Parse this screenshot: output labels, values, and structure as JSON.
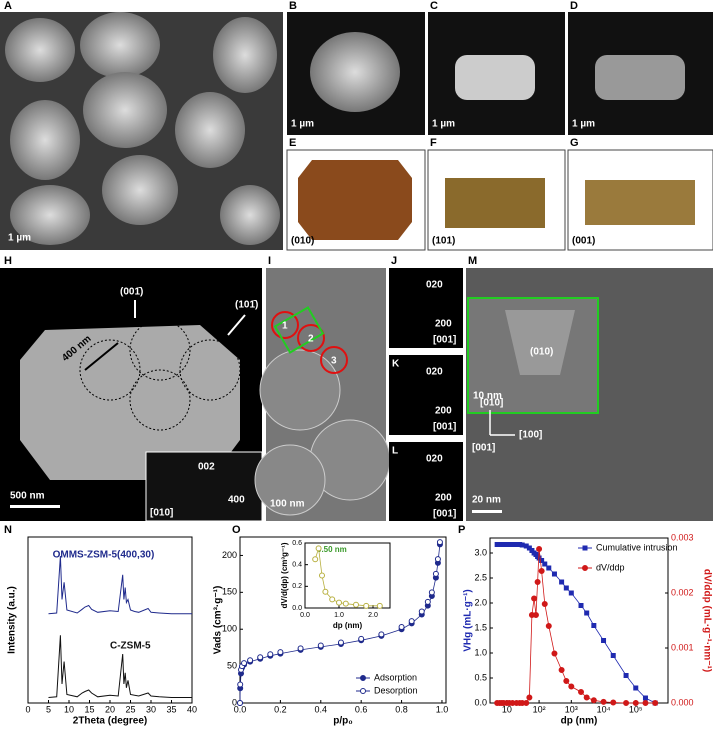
{
  "figure": {
    "panel_letters": [
      "A",
      "B",
      "C",
      "D",
      "E",
      "F",
      "G",
      "H",
      "I",
      "J",
      "K",
      "L",
      "M",
      "N",
      "O",
      "P"
    ],
    "A": {
      "scale_bar": "1 µm"
    },
    "B": {
      "scale_bar": "1 µm"
    },
    "C": {
      "scale_bar": "1 µm"
    },
    "D": {
      "scale_bar": "1 µm"
    },
    "E": {
      "plane": "(010)"
    },
    "F": {
      "plane": "(101)"
    },
    "G": {
      "plane": "(001)"
    },
    "H": {
      "directions": [
        "(001̄)",
        "(101̄)"
      ],
      "size": "400 nm",
      "scale_bar": "500 nm",
      "inset_spots": [
        "002",
        "400"
      ],
      "zone_axis": "[010]"
    },
    "I": {
      "scale_bar": "100 nm",
      "regions": [
        "1",
        "2",
        "3"
      ]
    },
    "J": {
      "spots": [
        "020",
        "200"
      ],
      "zone_axis": "[001]"
    },
    "K": {
      "spots": [
        "020",
        "200"
      ],
      "zone_axis": "[001]"
    },
    "L": {
      "spots": [
        "020",
        "200"
      ],
      "zone_axis": "[001]"
    },
    "M": {
      "inset_plane": "(010)",
      "inset_scale_bar": "10 nm",
      "scale_bar": "20 nm",
      "axes": [
        "[010]",
        "[001]",
        "[100]"
      ]
    }
  },
  "chart_data": [
    {
      "type": "line",
      "xlabel": "2Theta (degree)",
      "ylabel": "Intensity (a.u.)",
      "xlim": [
        0,
        40
      ],
      "xticks": [
        0,
        5,
        10,
        15,
        20,
        25,
        30,
        35,
        40
      ],
      "ylim": [
        0,
        100
      ],
      "offset_traces": true,
      "legend": "inline",
      "x": [
        5,
        7,
        7.9,
        8.3,
        8.8,
        9.5,
        12,
        13.2,
        13.9,
        14.8,
        15.5,
        17,
        20,
        22,
        23.1,
        23.4,
        23.7,
        24,
        24.4,
        25,
        26,
        27,
        29.3,
        30,
        32,
        35,
        40
      ],
      "series": [
        {
          "name": "OMMS-ZSM-5(400,30)",
          "color": "#1f2a8c",
          "values": [
            3,
            4,
            80,
            22,
            45,
            8,
            4,
            9,
            12,
            14,
            9,
            5,
            7,
            6,
            55,
            22,
            38,
            18,
            22,
            8,
            6,
            5,
            10,
            5,
            4,
            3,
            3
          ]
        },
        {
          "name": "C-ZSM-5",
          "color": "#111111",
          "values": [
            2,
            3,
            85,
            20,
            50,
            6,
            3,
            8,
            10,
            12,
            8,
            3,
            5,
            4,
            60,
            20,
            35,
            15,
            25,
            6,
            5,
            4,
            8,
            4,
            3,
            2,
            2
          ]
        }
      ]
    },
    {
      "type": "line",
      "xlabel": "p/p₀",
      "ylabel": "Vads (cm³·g⁻¹)",
      "xlim": [
        0,
        1.02
      ],
      "xticks": [
        {
          "value": 0,
          "label": "0.0"
        },
        0.2,
        0.4,
        0.6,
        0.8,
        {
          "value": 1,
          "label": "1.0"
        }
      ],
      "ylim": [
        0,
        225
      ],
      "yticks": [
        0,
        50,
        100,
        150,
        200
      ],
      "legend": "lower right",
      "x": [
        0,
        0.001,
        0.005,
        0.01,
        0.02,
        0.05,
        0.1,
        0.15,
        0.2,
        0.3,
        0.4,
        0.5,
        0.6,
        0.7,
        0.8,
        0.85,
        0.9,
        0.93,
        0.95,
        0.97,
        0.98,
        0.99
      ],
      "series": [
        {
          "name": "Adsorption",
          "color": "#1f2a8c",
          "marker": "circle",
          "values": [
            0,
            20,
            40,
            48,
            52,
            56,
            60,
            64,
            67,
            72,
            76,
            80,
            85,
            91,
            100,
            108,
            120,
            132,
            145,
            170,
            190,
            215
          ]
        },
        {
          "name": "Desorption",
          "color": "#1f2a8c",
          "marker": "open-circle",
          "values": [
            0,
            25,
            45,
            50,
            54,
            58,
            62,
            66,
            69,
            74,
            78,
            82,
            87,
            93,
            103,
            111,
            124,
            137,
            150,
            175,
            195,
            218
          ]
        }
      ]
    },
    {
      "type": "line",
      "xlabel": "dp (nm)",
      "ylabel": "dV/d(dp) (cm³g⁻¹)",
      "annotation": "0.50 nm",
      "xlim": [
        0,
        2.5
      ],
      "xticks": [
        {
          "value": 0,
          "label": "0.0"
        },
        {
          "value": 1,
          "label": "1.0"
        },
        {
          "value": 2,
          "label": "2.0"
        }
      ],
      "ylim": [
        0,
        0.6
      ],
      "yticks": [
        {
          "value": 0,
          "label": "0.0"
        },
        0.2,
        0.4,
        0.6
      ],
      "x": [
        0.3,
        0.4,
        0.5,
        0.6,
        0.8,
        1.0,
        1.2,
        1.5,
        1.8,
        2.2
      ],
      "series": [
        {
          "color": "#b8b040",
          "marker": "open-circle",
          "values": [
            0.45,
            0.55,
            0.3,
            0.15,
            0.08,
            0.05,
            0.04,
            0.03,
            0.02,
            0.02
          ]
        }
      ]
    },
    {
      "type": "line",
      "xlabel": "dp (nm)",
      "ylabel": "VHg (mL·g⁻¹)",
      "y2label": "dV/ddp (mL·g⁻¹·nm⁻¹)",
      "xscale": "log",
      "xlim": [
        3,
        1000000
      ],
      "xticks": [
        10,
        {
          "value": 100,
          "label": "10²"
        },
        {
          "value": 1000,
          "label": "10³"
        },
        {
          "value": 10000,
          "label": "10⁴"
        },
        {
          "value": 100000,
          "label": "10⁵"
        }
      ],
      "ylim": [
        0,
        3.3
      ],
      "yticks": [
        {
          "value": 0,
          "label": "0.0"
        },
        0.5,
        {
          "value": 1,
          "label": "1.0"
        },
        1.5,
        {
          "value": 2,
          "label": "2.0"
        },
        2.5,
        {
          "value": 3,
          "label": "3.0"
        }
      ],
      "y2lim": [
        0,
        0.003
      ],
      "y2ticks": [
        {
          "value": 0,
          "label": "0.000"
        },
        0.001,
        0.002,
        0.003
      ],
      "legend": "upper right",
      "x": [
        5,
        6,
        7,
        8,
        10,
        12,
        15,
        20,
        25,
        30,
        40,
        50,
        60,
        70,
        80,
        90,
        100,
        120,
        150,
        200,
        300,
        500,
        700,
        1000,
        2000,
        3000,
        5000,
        10000,
        20000,
        50000,
        100000,
        200000,
        400000
      ],
      "series": [
        {
          "name": "Cumulative intrusion",
          "color": "#1f2ab0",
          "marker": "square",
          "values": [
            3.17,
            3.17,
            3.17,
            3.17,
            3.17,
            3.17,
            3.17,
            3.17,
            3.17,
            3.16,
            3.14,
            3.1,
            3.05,
            3.0,
            2.97,
            2.93,
            2.9,
            2.85,
            2.78,
            2.7,
            2.58,
            2.42,
            2.3,
            2.2,
            1.95,
            1.8,
            1.55,
            1.25,
            0.95,
            0.55,
            0.3,
            0.1,
            0.0
          ]
        },
        {
          "name": "dV/ddp",
          "color": "#d01818",
          "marker": "circle",
          "axis": "y2",
          "values": [
            0,
            0,
            0,
            0,
            0,
            0,
            0,
            0,
            0,
            0,
            0,
            0.0001,
            0.0016,
            0.0019,
            0.0016,
            0.0022,
            0.0028,
            0.0024,
            0.0018,
            0.0014,
            0.0009,
            0.0006,
            0.0004,
            0.0003,
            0.0002,
            0.0001,
            5e-05,
            2e-05,
            1e-05,
            0,
            0,
            0,
            0
          ]
        }
      ]
    }
  ]
}
